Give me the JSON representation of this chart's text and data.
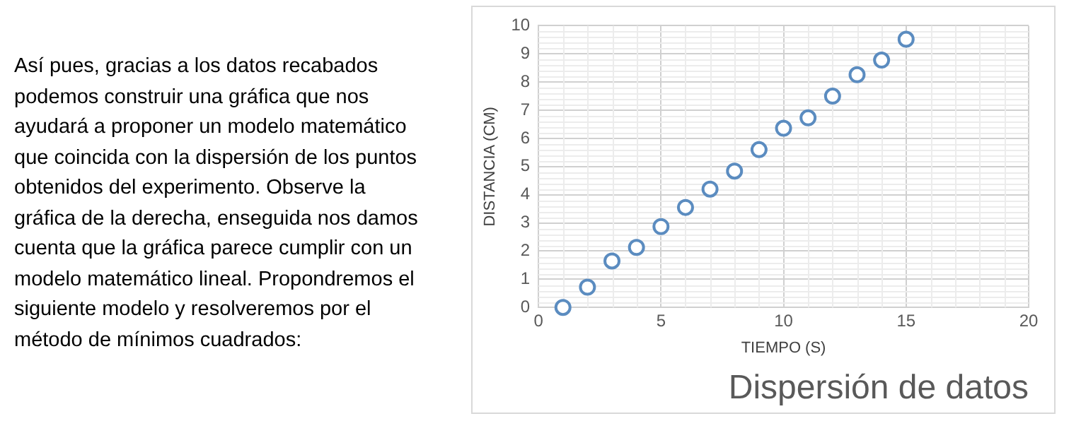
{
  "chart_data": {
    "type": "scatter",
    "title": "Dispersión de datos",
    "xlabel": "TIEMPO (S)",
    "ylabel": "DISTANCIA (CM)",
    "x": [
      1,
      2,
      3,
      4,
      5,
      6,
      7,
      8,
      9,
      10,
      11,
      12,
      13,
      14,
      15
    ],
    "series": [
      {
        "color": "#5b8cc0",
        "values": [
          0,
          0.72,
          1.65,
          2.13,
          2.87,
          3.55,
          4.2,
          4.84,
          5.6,
          6.36,
          6.73,
          7.5,
          8.26,
          8.78,
          9.52
        ]
      }
    ],
    "xlim": [
      0,
      20
    ],
    "xticks": [
      0,
      5,
      10,
      15,
      20
    ],
    "ylim": [
      0,
      10
    ],
    "yticks": [
      0,
      1,
      2,
      3,
      4,
      5,
      6,
      7,
      8,
      9,
      10
    ],
    "grid": true,
    "legend": false,
    "marker": "circle",
    "annotations": [
      "Así pues, gracias a los datos recabados podemos construir una gráfica que nos ayudará a proponer un modelo matemático que coincida con la dispersión de los puntos obtenidos del experimento. Observe la gráfica de la derecha, enseguida nos damos cuenta que la gráfica parece cumplir con un modelo matemático lineal. Propondremos el siguiente modelo y resolveremos por el método de mínimos cuadrados:"
    ]
  }
}
